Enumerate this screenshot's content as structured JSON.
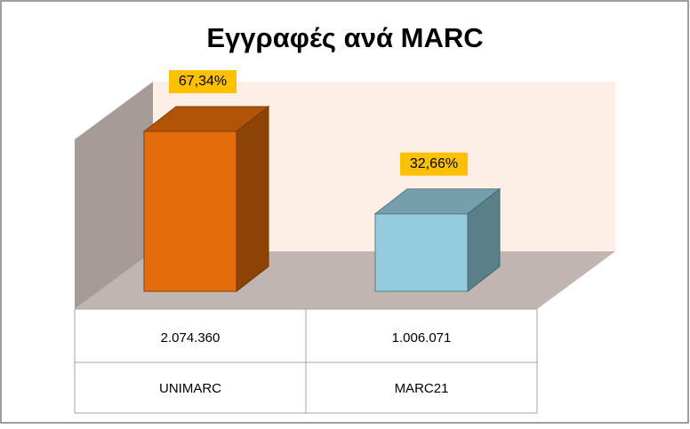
{
  "chart_data": {
    "type": "bar3d",
    "title": "Εγγραφές ανά MARC",
    "categories": [
      "UNIMARC",
      "MARC21"
    ],
    "values": [
      67.34,
      32.66
    ],
    "value_labels": [
      "67,34%",
      "32,66%"
    ],
    "data_table": [
      "2.074.360",
      "1.006.071"
    ],
    "colors": [
      "#e46c0a",
      "#93cddd"
    ]
  }
}
